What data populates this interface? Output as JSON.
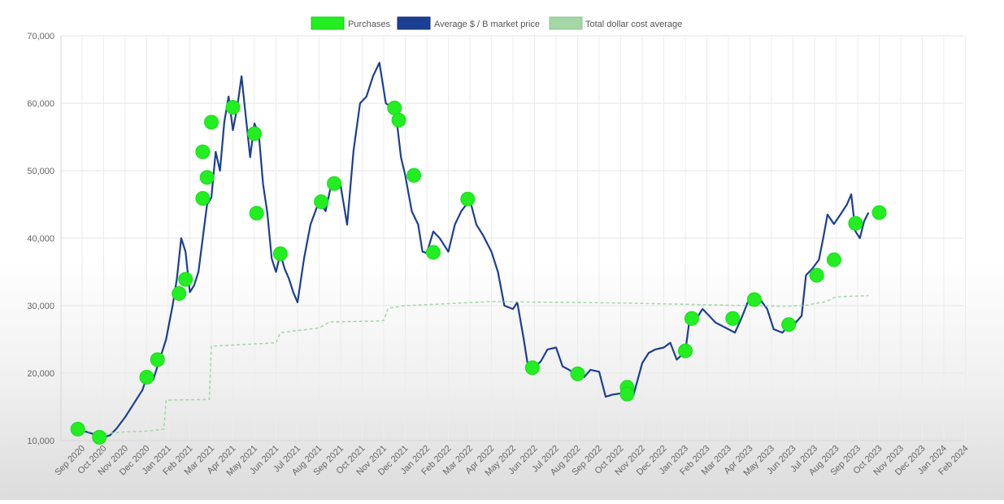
{
  "chart_data": {
    "type": "line",
    "title": "",
    "xlabel": "",
    "ylabel": "",
    "ylim": [
      10000,
      70000
    ],
    "y_ticks": [
      "10,000",
      "20,000",
      "30,000",
      "40,000",
      "50,000",
      "60,000",
      "70,000"
    ],
    "x_ticks": [
      "Sep 2020",
      "Oct 2020",
      "Nov 2020",
      "Dec 2020",
      "Jan 2021",
      "Feb 2021",
      "Mar 2021",
      "Apr 2021",
      "May 2021",
      "Jun 2021",
      "Jul 2021",
      "Aug 2021",
      "Sep 2021",
      "Oct 2021",
      "Nov 2021",
      "Dec 2021",
      "Jan 2022",
      "Feb 2022",
      "Mar 2022",
      "Apr 2022",
      "May 2022",
      "Jun 2022",
      "Jul 2022",
      "Aug 2022",
      "Sep 2022",
      "Oct 2022",
      "Nov 2022",
      "Dec 2022",
      "Jan 2023",
      "Feb 2023",
      "Mar 2023",
      "Apr 2023",
      "May 2023",
      "Jun 2023",
      "Jul 2023",
      "Aug 2023",
      "Sep 2023",
      "Oct 2023",
      "Nov 2023",
      "Dec 2023",
      "Jan 2024",
      "Feb 2024"
    ],
    "grid": true,
    "legend_position": "top",
    "legend": [
      {
        "name": "Purchases",
        "color": "#22ee22"
      },
      {
        "name": "Average $ / Β market price",
        "color": "#1c3f94"
      },
      {
        "name": "Total dollar cost average",
        "color": "#a5d6a7"
      }
    ],
    "series": [
      {
        "name": "Average $ / Β market price",
        "color": "#1c3f94",
        "points": [
          [
            -0.2,
            11700
          ],
          [
            0.2,
            11300
          ],
          [
            0.5,
            11000
          ],
          [
            0.8,
            10800
          ],
          [
            1.0,
            10500
          ],
          [
            1.3,
            10800
          ],
          [
            1.6,
            11800
          ],
          [
            2.0,
            13500
          ],
          [
            2.5,
            16000
          ],
          [
            2.8,
            17500
          ],
          [
            3.0,
            19400
          ],
          [
            3.3,
            19000
          ],
          [
            3.6,
            22000
          ],
          [
            3.9,
            25000
          ],
          [
            4.2,
            30000
          ],
          [
            4.4,
            34000
          ],
          [
            4.6,
            40000
          ],
          [
            4.8,
            38000
          ],
          [
            5.0,
            32000
          ],
          [
            5.2,
            33000
          ],
          [
            5.4,
            35000
          ],
          [
            5.6,
            40000
          ],
          [
            5.8,
            45000
          ],
          [
            6.0,
            46000
          ],
          [
            6.2,
            52800
          ],
          [
            6.4,
            50000
          ],
          [
            6.6,
            57200
          ],
          [
            6.8,
            61000
          ],
          [
            7.0,
            56000
          ],
          [
            7.2,
            59400
          ],
          [
            7.4,
            64000
          ],
          [
            7.6,
            58000
          ],
          [
            7.8,
            52000
          ],
          [
            8.0,
            57000
          ],
          [
            8.2,
            55500
          ],
          [
            8.4,
            48000
          ],
          [
            8.6,
            43700
          ],
          [
            8.8,
            37000
          ],
          [
            9.0,
            35000
          ],
          [
            9.2,
            37700
          ],
          [
            9.4,
            35500
          ],
          [
            9.6,
            34000
          ],
          [
            9.8,
            32000
          ],
          [
            10.0,
            30500
          ],
          [
            10.3,
            37000
          ],
          [
            10.6,
            42000
          ],
          [
            11.0,
            45500
          ],
          [
            11.3,
            44000
          ],
          [
            11.6,
            48500
          ],
          [
            12.0,
            47800
          ],
          [
            12.3,
            42000
          ],
          [
            12.6,
            53000
          ],
          [
            12.9,
            60000
          ],
          [
            13.2,
            61000
          ],
          [
            13.5,
            64000
          ],
          [
            13.8,
            66000
          ],
          [
            14.1,
            60000
          ],
          [
            14.4,
            59300
          ],
          [
            14.6,
            57500
          ],
          [
            14.8,
            52000
          ],
          [
            15.0,
            49300
          ],
          [
            15.3,
            44000
          ],
          [
            15.6,
            42000
          ],
          [
            15.8,
            38000
          ],
          [
            16.0,
            37800
          ],
          [
            16.3,
            41000
          ],
          [
            16.6,
            40000
          ],
          [
            17.0,
            38000
          ],
          [
            17.3,
            42000
          ],
          [
            17.6,
            44000
          ],
          [
            18.0,
            45700
          ],
          [
            18.3,
            42000
          ],
          [
            18.6,
            40500
          ],
          [
            19.0,
            38000
          ],
          [
            19.3,
            35000
          ],
          [
            19.6,
            30000
          ],
          [
            20.0,
            29500
          ],
          [
            20.2,
            30500
          ],
          [
            20.5,
            25000
          ],
          [
            20.7,
            21000
          ],
          [
            21.0,
            20800
          ],
          [
            21.3,
            21800
          ],
          [
            21.6,
            23500
          ],
          [
            22.0,
            23800
          ],
          [
            22.3,
            21000
          ],
          [
            22.6,
            20500
          ],
          [
            23.0,
            19700
          ],
          [
            23.3,
            19400
          ],
          [
            23.6,
            20500
          ],
          [
            24.0,
            20200
          ],
          [
            24.3,
            16500
          ],
          [
            24.6,
            16800
          ],
          [
            25.0,
            17000
          ],
          [
            25.3,
            17800
          ],
          [
            25.6,
            16800
          ],
          [
            26.0,
            21500
          ],
          [
            26.3,
            23000
          ],
          [
            26.6,
            23500
          ],
          [
            27.0,
            23800
          ],
          [
            27.3,
            24500
          ],
          [
            27.6,
            22000
          ],
          [
            28.0,
            23200
          ],
          [
            28.2,
            28000
          ],
          [
            28.5,
            28000
          ],
          [
            28.8,
            29500
          ],
          [
            29.1,
            28500
          ],
          [
            29.4,
            27500
          ],
          [
            29.7,
            27000
          ],
          [
            30.0,
            26500
          ],
          [
            30.3,
            26000
          ],
          [
            30.6,
            28100
          ],
          [
            30.9,
            30500
          ],
          [
            31.2,
            30000
          ],
          [
            31.5,
            30800
          ],
          [
            31.8,
            29500
          ],
          [
            32.1,
            26500
          ],
          [
            32.5,
            26000
          ],
          [
            32.8,
            27000
          ],
          [
            33.1,
            27400
          ],
          [
            33.4,
            28500
          ],
          [
            33.6,
            34500
          ],
          [
            33.9,
            35500
          ],
          [
            34.2,
            36800
          ],
          [
            34.4,
            40000
          ],
          [
            34.6,
            43500
          ],
          [
            34.9,
            42100
          ],
          [
            35.2,
            43500
          ],
          [
            35.5,
            45000
          ],
          [
            35.7,
            46500
          ],
          [
            35.9,
            41000
          ],
          [
            36.1,
            40000
          ],
          [
            36.3,
            42500
          ],
          [
            36.5,
            43800
          ]
        ]
      },
      {
        "name": "Total dollar cost average",
        "color": "#a5d6a7",
        "points": [
          [
            0.0,
            11500
          ],
          [
            1.0,
            11000
          ],
          [
            2.0,
            11300
          ],
          [
            3.0,
            11400
          ],
          [
            3.8,
            11700
          ],
          [
            3.9,
            16000
          ],
          [
            5.9,
            16100
          ],
          [
            6.0,
            24000
          ],
          [
            8.5,
            24400
          ],
          [
            9.0,
            24500
          ],
          [
            9.2,
            26000
          ],
          [
            11.0,
            26700
          ],
          [
            11.5,
            27600
          ],
          [
            13.5,
            27700
          ],
          [
            14.0,
            27800
          ],
          [
            14.2,
            29600
          ],
          [
            15.0,
            30000
          ],
          [
            17.0,
            30300
          ],
          [
            19.0,
            30600
          ],
          [
            22.0,
            30500
          ],
          [
            25.0,
            30400
          ],
          [
            28.0,
            30200
          ],
          [
            31.0,
            30000
          ],
          [
            32.5,
            29900
          ],
          [
            33.5,
            30000
          ],
          [
            34.5,
            30600
          ],
          [
            35.0,
            31300
          ],
          [
            36.5,
            31500
          ]
        ]
      }
    ],
    "purchases": [
      [
        -0.2,
        11700
      ],
      [
        0.8,
        10500
      ],
      [
        3.0,
        19400
      ],
      [
        3.5,
        22000
      ],
      [
        4.5,
        31800
      ],
      [
        4.8,
        33900
      ],
      [
        5.6,
        45900
      ],
      [
        5.6,
        52800
      ],
      [
        5.8,
        49000
      ],
      [
        6.0,
        57200
      ],
      [
        7.0,
        59400
      ],
      [
        8.0,
        55500
      ],
      [
        8.1,
        43700
      ],
      [
        9.2,
        37700
      ],
      [
        11.1,
        45400
      ],
      [
        11.7,
        48100
      ],
      [
        14.5,
        59300
      ],
      [
        14.7,
        57500
      ],
      [
        15.4,
        49300
      ],
      [
        16.3,
        37900
      ],
      [
        17.9,
        45800
      ],
      [
        20.9,
        20800
      ],
      [
        23.0,
        19900
      ],
      [
        25.3,
        17900
      ],
      [
        25.3,
        16900
      ],
      [
        28.0,
        23300
      ],
      [
        28.3,
        28100
      ],
      [
        30.2,
        28100
      ],
      [
        31.2,
        30900
      ],
      [
        32.8,
        27200
      ],
      [
        34.1,
        34500
      ],
      [
        34.9,
        36800
      ],
      [
        35.9,
        42200
      ],
      [
        37.0,
        43800
      ]
    ]
  }
}
